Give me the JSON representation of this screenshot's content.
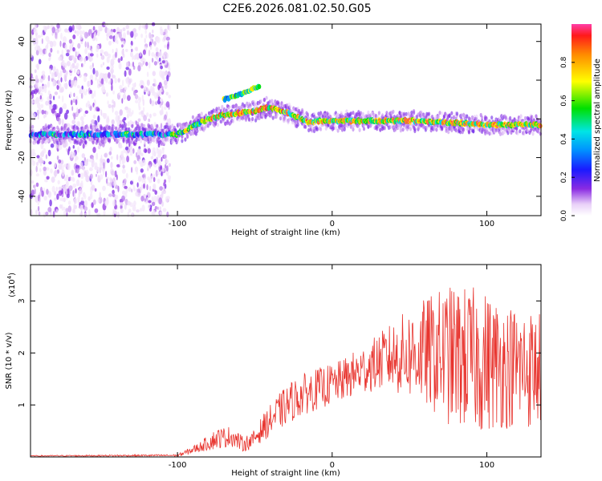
{
  "title": "C2E6.2026.081.02.50.G05",
  "chart_data": [
    {
      "type": "heatmap",
      "name": "spectrogram",
      "xlabel": "Height of straight line (km)",
      "ylabel": "Frequency (Hz)",
      "xlim": [
        -195,
        135
      ],
      "ylim": [
        -50,
        49
      ],
      "xticks": [
        -100,
        0,
        100
      ],
      "xtick_labels": [
        "-100",
        "0",
        "100"
      ],
      "yticks": [
        -40,
        -20,
        0,
        20,
        40
      ],
      "ytick_labels": [
        "-40",
        "-20",
        "0",
        "20",
        "40"
      ],
      "grid": false,
      "noise_region_x": [
        -195,
        -105
      ],
      "ridge": {
        "x": [
          -195,
          -170,
          -140,
          -120,
          -108,
          -100,
          -90,
          -80,
          -70,
          -60,
          -50,
          -42,
          -35,
          -28,
          -20,
          -15,
          -10,
          0,
          20,
          50,
          80,
          100,
          120,
          135
        ],
        "freq": [
          -8,
          -8,
          -8,
          -8,
          -8,
          -8,
          -4,
          0,
          2,
          3,
          4,
          6,
          5,
          3,
          0,
          -2,
          -1,
          -1,
          -1,
          -1,
          -2,
          -3,
          -3,
          -3
        ]
      },
      "secondary_branch": {
        "x": [
          -70,
          -62,
          -55,
          -50,
          -47
        ],
        "freq": [
          10,
          12,
          14,
          16,
          17
        ]
      },
      "colorbar": {
        "label": "Normalized spectral amplitude",
        "range": [
          0,
          1
        ],
        "ticks": [
          0.0,
          0.2,
          0.4,
          0.6,
          0.8
        ],
        "tick_labels": [
          "0.0",
          "0.2",
          "0.4",
          "0.6",
          "0.8"
        ]
      }
    },
    {
      "type": "line",
      "name": "snr",
      "xlabel": "Height of straight line (km)",
      "ylabel": "SNR (10 * v/v)",
      "scale_label": "(x10",
      "scale_exp": "4",
      "scale_close": ")",
      "xlim": [
        -195,
        135
      ],
      "ylim": [
        0,
        3.7
      ],
      "xticks": [
        -100,
        0,
        100
      ],
      "xtick_labels": [
        "-100",
        "0",
        "100"
      ],
      "yticks": [
        1,
        2,
        3
      ],
      "ytick_labels": [
        "1",
        "2",
        "3"
      ],
      "color": "#e8342e",
      "envelope": {
        "x": [
          -195,
          -100,
          -95,
          -85,
          -75,
          -65,
          -58,
          -52,
          -45,
          -35,
          -25,
          -15,
          -5,
          5,
          15,
          25,
          35,
          45,
          55,
          65,
          75,
          85,
          95,
          105,
          115,
          125,
          135
        ],
        "mean": [
          0.02,
          0.03,
          0.08,
          0.2,
          0.35,
          0.4,
          0.25,
          0.3,
          0.55,
          0.85,
          1.1,
          1.25,
          1.35,
          1.45,
          1.6,
          1.75,
          1.9,
          1.95,
          2.0,
          2.0,
          1.95,
          1.9,
          1.85,
          1.8,
          1.75,
          1.7,
          1.7
        ],
        "amp": [
          0.01,
          0.02,
          0.05,
          0.1,
          0.2,
          0.2,
          0.15,
          0.15,
          0.25,
          0.35,
          0.4,
          0.4,
          0.4,
          0.4,
          0.45,
          0.5,
          0.6,
          0.8,
          0.95,
          1.15,
          1.35,
          1.4,
          1.4,
          1.3,
          1.2,
          1.2,
          1.1
        ]
      }
    }
  ]
}
